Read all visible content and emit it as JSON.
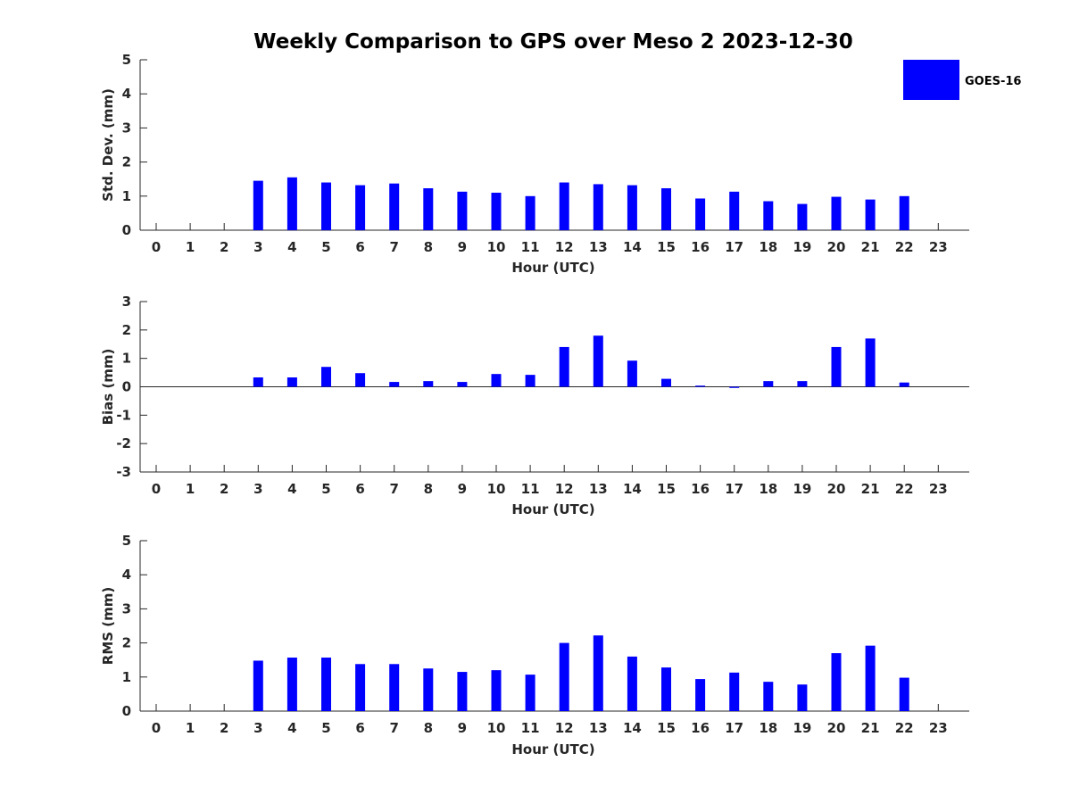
{
  "chart_data": {
    "title": "Weekly Comparison to GPS over Meso 2 2023-12-30",
    "legend": {
      "label": "GOES-16",
      "color": "#0000ff",
      "placement": "top-right"
    },
    "panels": [
      {
        "type": "bar",
        "ylabel": "Std. Dev. (mm)",
        "xlabel": "Hour (UTC)",
        "ylim": [
          0,
          5
        ],
        "yticks": [
          "0",
          "1",
          "2",
          "3",
          "4",
          "5"
        ],
        "categories": [
          "0",
          "1",
          "2",
          "3",
          "4",
          "5",
          "6",
          "7",
          "8",
          "9",
          "10",
          "11",
          "12",
          "13",
          "14",
          "15",
          "16",
          "17",
          "18",
          "19",
          "20",
          "21",
          "22",
          "23"
        ],
        "series": [
          {
            "name": "GOES-16",
            "values": [
              null,
              null,
              null,
              1.45,
              1.55,
              1.4,
              1.32,
              1.37,
              1.23,
              1.13,
              1.1,
              1.0,
              1.4,
              1.35,
              1.32,
              1.23,
              0.93,
              1.13,
              0.85,
              0.77,
              0.98,
              0.9,
              1.0,
              null
            ]
          }
        ]
      },
      {
        "type": "bar",
        "ylabel": "Bias (mm)",
        "xlabel": "Hour (UTC)",
        "ylim": [
          -3,
          3
        ],
        "yticks": [
          "-3",
          "-2",
          "-1",
          "0",
          "1",
          "2",
          "3"
        ],
        "categories": [
          "0",
          "1",
          "2",
          "3",
          "4",
          "5",
          "6",
          "7",
          "8",
          "9",
          "10",
          "11",
          "12",
          "13",
          "14",
          "15",
          "16",
          "17",
          "18",
          "19",
          "20",
          "21",
          "22",
          "23"
        ],
        "series": [
          {
            "name": "GOES-16",
            "values": [
              null,
              null,
              null,
              0.33,
              0.33,
              0.7,
              0.48,
              0.17,
              0.2,
              0.17,
              0.45,
              0.42,
              1.4,
              1.8,
              0.92,
              0.28,
              0.04,
              -0.04,
              0.2,
              0.2,
              1.4,
              1.7,
              0.15,
              null
            ]
          }
        ]
      },
      {
        "type": "bar",
        "ylabel": "RMS (mm)",
        "xlabel": "Hour (UTC)",
        "ylim": [
          0,
          5
        ],
        "yticks": [
          "0",
          "1",
          "2",
          "3",
          "4",
          "5"
        ],
        "categories": [
          "0",
          "1",
          "2",
          "3",
          "4",
          "5",
          "6",
          "7",
          "8",
          "9",
          "10",
          "11",
          "12",
          "13",
          "14",
          "15",
          "16",
          "17",
          "18",
          "19",
          "20",
          "21",
          "22",
          "23"
        ],
        "series": [
          {
            "name": "GOES-16",
            "values": [
              null,
              null,
              null,
              1.48,
              1.57,
              1.57,
              1.38,
              1.38,
              1.25,
              1.15,
              1.2,
              1.07,
              2.0,
              2.22,
              1.6,
              1.28,
              0.94,
              1.13,
              0.86,
              0.78,
              1.7,
              1.92,
              0.98,
              null
            ]
          }
        ]
      }
    ]
  }
}
